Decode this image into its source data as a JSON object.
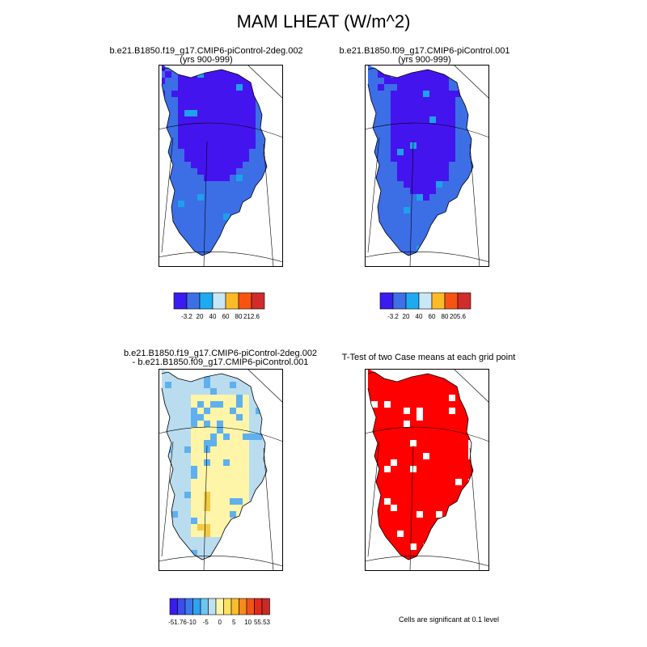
{
  "title": "MAM LHEAT (W/m^2)",
  "colors": {
    "ocean": "#ffffff",
    "coast": "#000000",
    "grid": "#000000",
    "significant": "#ff0000"
  },
  "panels": [
    {
      "id": "case1",
      "title_line1": "b.e21.B1850.f19_g17.CMIP6-piControl-2deg.002",
      "title_line2": "(yrs 900-999)",
      "palette": [
        "#4414ee",
        "#3c6ee6",
        "#1ea0ee"
      ],
      "colorbar": {
        "colors": [
          "#3a1cf0",
          "#3e6fe6",
          "#1eaaf0",
          "#c8e8f8",
          "#fbbb26",
          "#f75412",
          "#d02c2c"
        ],
        "labels": [
          "-3.2",
          "20",
          "40",
          "60",
          "80",
          "212.6"
        ]
      }
    },
    {
      "id": "case2",
      "title_line1": "b.e21.B1850.f09_g17.CMIP6-piControl.001",
      "title_line2": "(yrs 900-999)",
      "palette": [
        "#4414ee",
        "#3c6ee6",
        "#1ea0ee"
      ],
      "colorbar": {
        "colors": [
          "#3a1cf0",
          "#3e6fe6",
          "#1eaaf0",
          "#c8e8f8",
          "#fbbb26",
          "#f75412",
          "#d02c2c"
        ],
        "labels": [
          "-3.2",
          "20",
          "40",
          "60",
          "80",
          "205.6"
        ]
      }
    },
    {
      "id": "diff",
      "title_line1": "b.e21.B1850.f19_g17.CMIP6-piControl-2deg.002",
      "title_line2": "- b.e21.B1850.f09_g17.CMIP6-piControl.001",
      "palette": [
        "#fef5a8",
        "#b9dcef",
        "#5fb0ee",
        "#f2ca45"
      ],
      "colorbar": {
        "colors": [
          "#3a1cf0",
          "#3c4cf0",
          "#3c78ee",
          "#2ea3f2",
          "#6ec4f2",
          "#bde1f2",
          "#fef5a8",
          "#fde066",
          "#f9bd2c",
          "#f68a1e",
          "#f25516",
          "#e02a1c",
          "#c82a2a"
        ],
        "labels": [
          "-51.76",
          "-10",
          "-5",
          "0",
          "5",
          "10",
          "55.53"
        ]
      }
    },
    {
      "id": "ttest",
      "title_line1": "T-Test of two Case means at each grid point",
      "title_line2": "",
      "note": "Cells are significant at 0.1 level"
    }
  ]
}
